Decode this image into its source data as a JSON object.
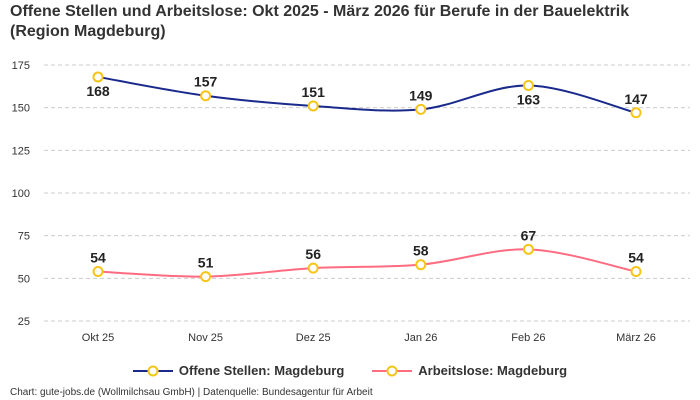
{
  "chart_data": {
    "type": "line",
    "title": "Offene Stellen und Arbeitslose: Okt 2025 - März 2026 für Berufe in der Bauelektrik (Region Magdeburg)",
    "categories": [
      "Okt 25",
      "Nov 25",
      "Dez 25",
      "Jan 26",
      "Feb 26",
      "März 26"
    ],
    "series": [
      {
        "name": "Offene Stellen: Magdeburg",
        "values": [
          168,
          157,
          151,
          149,
          163,
          147
        ],
        "color": "#1a2a8c",
        "label_pos": [
          "below",
          "above",
          "above",
          "above",
          "below",
          "above"
        ]
      },
      {
        "name": "Arbeitslose: Magdeburg",
        "values": [
          54,
          51,
          56,
          58,
          67,
          54
        ],
        "color": "#ff6b81",
        "label_pos": [
          "above",
          "above",
          "above",
          "above",
          "above",
          "above"
        ]
      }
    ],
    "marker_color": "#f5c518",
    "yticks": [
      25,
      50,
      75,
      100,
      125,
      150,
      175
    ],
    "ylim": [
      25,
      175
    ],
    "grid": true,
    "legend_position": "bottom",
    "xlabel": "",
    "ylabel": ""
  },
  "credit": "Chart: gute-jobs.de (Wollmilchsau GmbH) | Datenquelle: Bundesagentur für Arbeit"
}
